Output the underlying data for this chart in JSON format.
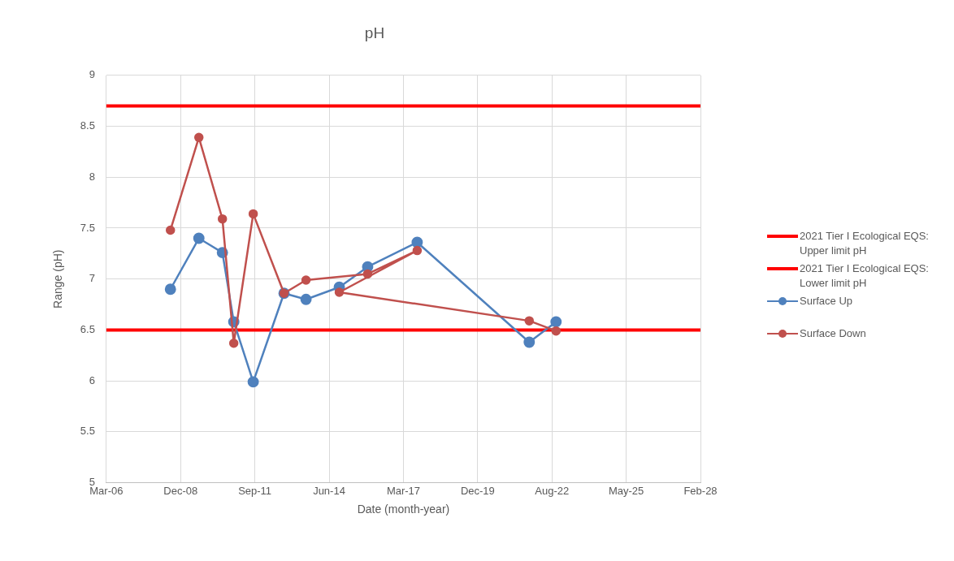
{
  "chart_data": {
    "type": "line",
    "title": "pH",
    "xlabel": "Date (month-year)",
    "ylabel": "Range (pH)",
    "series": [
      {
        "name": "2021 Tier I Ecological EQS: Upper limit pH",
        "color": "#ff0000",
        "marker": "none",
        "x": [
          "2006-03-24",
          "2028-02-18"
        ],
        "values": [
          8.7,
          8.7
        ]
      },
      {
        "name": "2021 Tier I Ecological EQS: Lower limit pH",
        "color": "#ff0000",
        "marker": "none",
        "x": [
          "2006-03-24",
          "2028-02-18"
        ],
        "values": [
          6.5,
          6.5
        ]
      },
      {
        "name": "Surface Up",
        "color": "#4f81bd",
        "x": [
          "2008-08-03",
          "2009-08-21",
          "2010-07-04",
          "2010-12-04",
          "2011-08-23",
          "2012-10-11",
          "2013-08-03",
          "2014-10-25",
          "2015-11-11",
          "2017-09-08",
          "2021-10-26",
          "2022-10-22"
        ],
        "values": [
          6.9,
          7.4,
          7.26,
          6.58,
          5.99,
          6.86,
          6.8,
          6.92,
          7.12,
          7.36,
          6.38,
          6.58
        ]
      },
      {
        "name": "Surface Down",
        "color": "#c0504d",
        "x": [
          "2008-08-03",
          "2009-08-21",
          "2010-07-04",
          "2010-12-04",
          "2011-08-23",
          "2012-10-11",
          "2013-08-03",
          "2015-11-11",
          "2017-09-08",
          "2014-10-25",
          "2021-10-26",
          "2022-10-22"
        ],
        "values": [
          7.48,
          8.39,
          7.59,
          6.37,
          7.64,
          6.86,
          6.99,
          7.05,
          7.28,
          6.87,
          6.59,
          6.49
        ]
      }
    ],
    "xlim": [
      "2006-03-24",
      "2028-02-18"
    ],
    "xticks": [
      {
        "value": "2006-03-24",
        "label": "Mar-06"
      },
      {
        "value": "2008-12-18",
        "label": "Dec-08"
      },
      {
        "value": "2011-09-14",
        "label": "Sep-11"
      },
      {
        "value": "2014-06-10",
        "label": "Jun-14"
      },
      {
        "value": "2017-03-07",
        "label": "Mar-17"
      },
      {
        "value": "2019-12-02",
        "label": "Dec-19"
      },
      {
        "value": "2022-08-28",
        "label": "Aug-22"
      },
      {
        "value": "2025-05-24",
        "label": "May-25"
      },
      {
        "value": "2028-02-18",
        "label": "Feb-28"
      }
    ],
    "ylim": [
      5,
      9
    ],
    "yticks": [
      5,
      5.5,
      6,
      6.5,
      7,
      7.5,
      8,
      8.5,
      9
    ],
    "grid": true,
    "legend": "right",
    "marker": "circle",
    "line_style": "solid"
  }
}
